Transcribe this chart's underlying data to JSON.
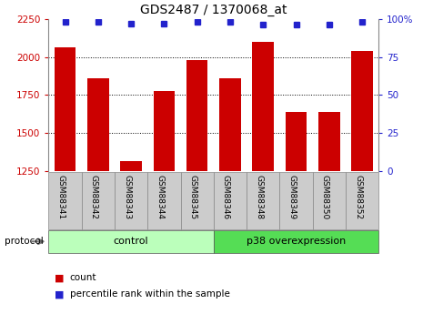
{
  "title": "GDS2487 / 1370068_at",
  "samples": [
    "GSM88341",
    "GSM88342",
    "GSM88343",
    "GSM88344",
    "GSM88345",
    "GSM88346",
    "GSM88348",
    "GSM88349",
    "GSM88350",
    "GSM88352"
  ],
  "counts": [
    2060,
    1860,
    1315,
    1775,
    1980,
    1860,
    2100,
    1640,
    1640,
    2040
  ],
  "percentile_ranks": [
    98,
    98,
    97,
    97,
    98,
    98,
    96,
    96,
    96,
    98
  ],
  "groups": [
    {
      "label": "control",
      "start": 0,
      "end": 5,
      "color": "#bbffbb"
    },
    {
      "label": "p38 overexpression",
      "start": 5,
      "end": 10,
      "color": "#55dd55"
    }
  ],
  "ylim_left": [
    1250,
    2250
  ],
  "ylim_right": [
    0,
    100
  ],
  "yticks_left": [
    1250,
    1500,
    1750,
    2000,
    2250
  ],
  "yticks_right": [
    0,
    25,
    50,
    75,
    100
  ],
  "bar_color": "#CC0000",
  "dot_color": "#2222CC",
  "grid_yticks": [
    1500,
    1750,
    2000
  ],
  "bar_width": 0.65,
  "sample_label_color": "#CCCCCC",
  "legend_items": [
    {
      "label": "count",
      "color": "#CC0000"
    },
    {
      "label": "percentile rank within the sample",
      "color": "#2222CC"
    }
  ]
}
